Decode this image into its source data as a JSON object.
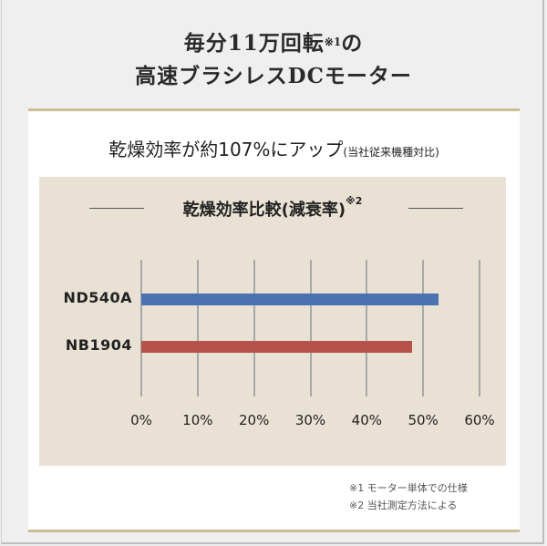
{
  "headline": {
    "line1_text": "毎分11万回転",
    "line1_sup": "※1",
    "line1_suffix": "の",
    "line2": "高速ブラシレスDCモーター"
  },
  "subhead": {
    "main": "乾燥効率が約107%にアップ",
    "note": "(当社従来機種対比)"
  },
  "colors": {
    "accent_gold": "#c9bd92",
    "panel_bg": "#e9e2d4",
    "bar_nd540a": "#4a72b0",
    "bar_nb1904": "#b5524a"
  },
  "chart_data": {
    "type": "bar",
    "orientation": "horizontal",
    "title": "乾燥効率比較(減衰率)※2",
    "categories": [
      "ND540A",
      "NB1904"
    ],
    "values": [
      52.7,
      48.1
    ],
    "unit": "%",
    "xlabel": "",
    "ylabel": "",
    "xlim": [
      0,
      60
    ],
    "x_ticks": [
      "0%",
      "10%",
      "20%",
      "30%",
      "40%",
      "50%",
      "60%"
    ],
    "grid": true,
    "legend": null,
    "series_colors": [
      "#4a72b0",
      "#b5524a"
    ]
  },
  "chart_title": {
    "text": "乾燥効率比較(減衰率)",
    "sup": "※2"
  },
  "footnotes": [
    "※1 モーター単体での仕様",
    "※2 当社測定方法による"
  ]
}
